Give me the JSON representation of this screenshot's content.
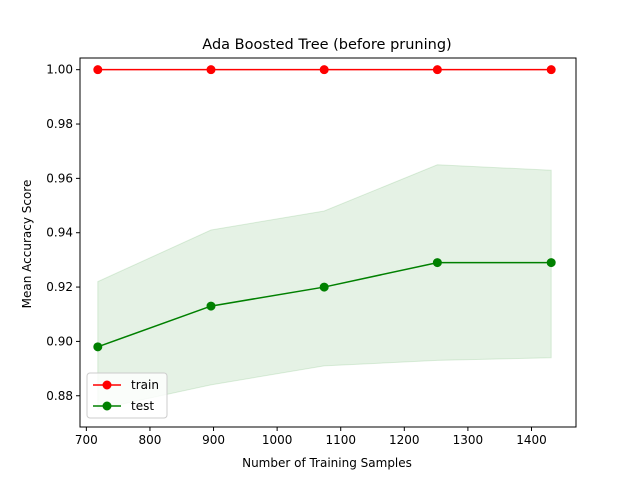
{
  "chart_data": {
    "type": "line",
    "title": "Ada Boosted Tree (before pruning)",
    "xlabel": "Number of Training Samples",
    "ylabel": "Mean Accuracy Score",
    "xlim": [
      690,
      1470
    ],
    "ylim": [
      0.8685,
      1.0043
    ],
    "x": [
      718,
      896,
      1074,
      1252,
      1431
    ],
    "xticks": [
      "700",
      "800",
      "900",
      "1000",
      "1100",
      "1200",
      "1300",
      "1400"
    ],
    "yticks": [
      "0.88",
      "0.90",
      "0.92",
      "0.94",
      "0.96",
      "0.98",
      "1.00"
    ],
    "grid": false,
    "legend_position": "lower-left",
    "series": [
      {
        "name": "train",
        "color": "#ff0000",
        "values": [
          1.0,
          1.0,
          1.0,
          1.0,
          1.0
        ]
      },
      {
        "name": "test",
        "color": "#008000",
        "values": [
          0.898,
          0.913,
          0.92,
          0.929,
          0.929
        ],
        "band_upper": [
          0.922,
          0.941,
          0.948,
          0.965,
          0.963
        ],
        "band_lower": [
          0.875,
          0.884,
          0.891,
          0.893,
          0.894
        ],
        "band_color": "#008000"
      }
    ]
  }
}
